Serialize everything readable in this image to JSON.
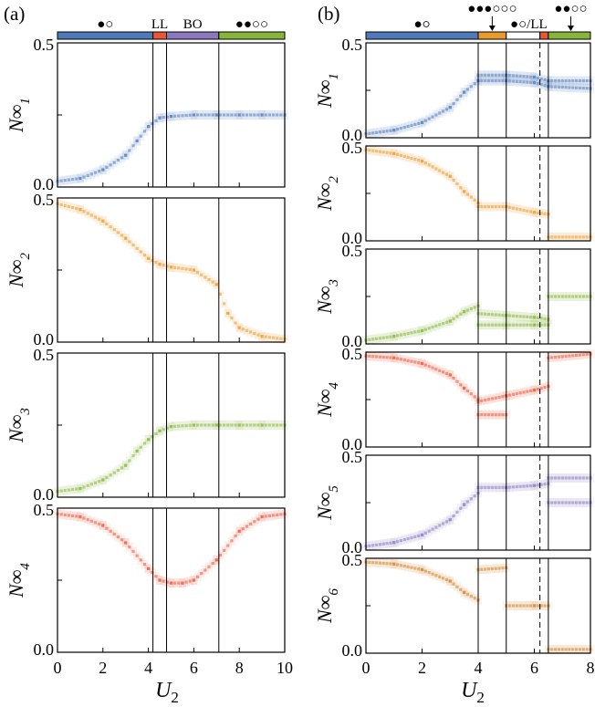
{
  "colors": {
    "blue": "#4f79b8",
    "orange": "#e89a2c",
    "green": "#86b53a",
    "red": "#e8553a",
    "purple": "#8a78c0",
    "brown": "#d2822c"
  },
  "chart_data": [
    {
      "type": "scatter",
      "panel_label": "(a)",
      "xlabel": "U2",
      "xlim": [
        0,
        10
      ],
      "xticks": [
        "0",
        "2",
        "4",
        "6",
        "8",
        "10"
      ],
      "phase_bar": [
        {
          "from": 0,
          "to": 4.2,
          "color": "#4f79b8",
          "label": "●○"
        },
        {
          "from": 4.2,
          "to": 4.8,
          "color": "#e8553a",
          "label": "LL"
        },
        {
          "from": 4.8,
          "to": 7.1,
          "color": "#8a78c0",
          "label": "BO"
        },
        {
          "from": 7.1,
          "to": 10,
          "color": "#86b53a",
          "label": "●●○○"
        }
      ],
      "vlines": [
        4.2,
        4.8,
        7.1
      ],
      "dashed_vlines": [],
      "subplots": [
        {
          "ylabel": "N∞",
          "subscript": "1",
          "ylim": [
            0,
            0.5
          ],
          "yticks": [
            "0.0",
            "0.5"
          ],
          "color": "#4f79b8",
          "series": [
            {
              "x": [
                0,
                1,
                2,
                3,
                3.5,
                4,
                4.5,
                5,
                6,
                7,
                8,
                9,
                10
              ],
              "y": [
                0.02,
                0.03,
                0.06,
                0.11,
                0.16,
                0.21,
                0.24,
                0.245,
                0.25,
                0.25,
                0.25,
                0.25,
                0.25
              ]
            }
          ]
        },
        {
          "ylabel": "N∞",
          "subscript": "2",
          "ylim": [
            0,
            0.5
          ],
          "yticks": [
            "0.0",
            "0.5"
          ],
          "color": "#e89a2c",
          "series": [
            {
              "x": [
                0,
                1,
                2,
                3,
                4,
                4.5,
                5,
                6,
                7,
                7.5,
                8,
                9,
                10
              ],
              "y": [
                0.48,
                0.46,
                0.42,
                0.36,
                0.29,
                0.27,
                0.26,
                0.25,
                0.2,
                0.1,
                0.05,
                0.02,
                0.01
              ]
            }
          ]
        },
        {
          "ylabel": "N∞",
          "subscript": "3",
          "ylim": [
            0,
            0.5
          ],
          "yticks": [
            "0.0",
            "0.5"
          ],
          "color": "#86b53a",
          "series": [
            {
              "x": [
                0,
                1,
                2,
                3,
                3.5,
                4,
                4.5,
                5,
                6,
                7,
                8,
                9,
                10
              ],
              "y": [
                0.02,
                0.03,
                0.06,
                0.11,
                0.16,
                0.2,
                0.23,
                0.245,
                0.25,
                0.25,
                0.25,
                0.25,
                0.25
              ]
            }
          ]
        },
        {
          "ylabel": "N∞",
          "subscript": "4",
          "ylim": [
            0,
            0.5
          ],
          "yticks": [
            "0.0",
            "0.5"
          ],
          "color": "#e8553a",
          "series": [
            {
              "x": [
                0,
                1,
                2,
                3,
                4,
                4.5,
                5,
                5.5,
                6,
                7,
                8,
                9,
                10
              ],
              "y": [
                0.48,
                0.47,
                0.44,
                0.38,
                0.29,
                0.25,
                0.24,
                0.24,
                0.25,
                0.32,
                0.42,
                0.47,
                0.48
              ]
            }
          ]
        }
      ]
    },
    {
      "type": "scatter",
      "panel_label": "(b)",
      "xlabel": "U2",
      "xlim": [
        0,
        8
      ],
      "xticks": [
        "0",
        "2",
        "4",
        "6",
        "8"
      ],
      "phase_bar": [
        {
          "from": 0,
          "to": 4.0,
          "color": "#4f79b8",
          "label": "●○"
        },
        {
          "from": 4.0,
          "to": 5.0,
          "color": "#e89a2c",
          "label": ""
        },
        {
          "from": 5.0,
          "to": 6.2,
          "color": "#ffffff",
          "label": ""
        },
        {
          "from": 6.2,
          "to": 6.5,
          "color": "#e8553a",
          "label": ""
        },
        {
          "from": 6.5,
          "to": 8,
          "color": "#86b53a",
          "label": ""
        }
      ],
      "phase_annotations": [
        {
          "label": "●○",
          "x": 2.0,
          "arrow": false
        },
        {
          "label": "●●●○○○",
          "x": 4.5,
          "arrow": true
        },
        {
          "label": "●○/LL",
          "x": 5.8,
          "arrow": false
        },
        {
          "label": "●●○○",
          "x": 7.3,
          "arrow": true
        }
      ],
      "vlines": [
        4.0,
        5.0,
        6.5
      ],
      "dashed_vlines": [
        6.2
      ],
      "subplots": [
        {
          "ylabel": "N∞",
          "subscript": "1",
          "ylim": [
            0,
            0.5
          ],
          "yticks": [
            "0.0",
            "0.5"
          ],
          "color": "#4f79b8",
          "series": [
            {
              "x": [
                0,
                1,
                2,
                3,
                3.5,
                4
              ],
              "y": [
                0.02,
                0.04,
                0.08,
                0.16,
                0.24,
                0.3
              ]
            },
            {
              "x": [
                4,
                5,
                6,
                6.5,
                8
              ],
              "y": [
                0.33,
                0.33,
                0.32,
                0.3,
                0.3
              ]
            },
            {
              "x": [
                4,
                5,
                6,
                6.5,
                8
              ],
              "y": [
                0.3,
                0.3,
                0.29,
                0.27,
                0.26
              ]
            }
          ]
        },
        {
          "ylabel": "N∞",
          "subscript": "2",
          "ylim": [
            0,
            0.5
          ],
          "yticks": [
            "0.0",
            "0.5"
          ],
          "color": "#e89a2c",
          "series": [
            {
              "x": [
                0,
                1,
                2,
                3,
                3.5,
                4
              ],
              "y": [
                0.48,
                0.46,
                0.42,
                0.34,
                0.26,
                0.2
              ]
            },
            {
              "x": [
                4,
                5,
                6,
                6.5
              ],
              "y": [
                0.18,
                0.18,
                0.15,
                0.14
              ]
            },
            {
              "x": [
                6.5,
                8
              ],
              "y": [
                0.02,
                0.02
              ]
            }
          ]
        },
        {
          "ylabel": "N∞",
          "subscript": "3",
          "ylim": [
            0,
            0.5
          ],
          "yticks": [
            "0.0",
            "0.5"
          ],
          "color": "#86b53a",
          "series": [
            {
              "x": [
                0,
                1,
                2,
                3,
                3.5,
                4
              ],
              "y": [
                0.02,
                0.04,
                0.07,
                0.12,
                0.17,
                0.2
              ]
            },
            {
              "x": [
                4,
                5,
                6,
                6.5
              ],
              "y": [
                0.16,
                0.15,
                0.14,
                0.13
              ]
            },
            {
              "x": [
                4,
                5,
                6,
                6.5
              ],
              "y": [
                0.1,
                0.1,
                0.1,
                0.1
              ]
            },
            {
              "x": [
                6.5,
                8
              ],
              "y": [
                0.25,
                0.25
              ]
            }
          ]
        },
        {
          "ylabel": "N∞",
          "subscript": "4",
          "ylim": [
            0,
            0.5
          ],
          "yticks": [
            "0.0",
            "0.5"
          ],
          "color": "#e8553a",
          "series": [
            {
              "x": [
                0,
                1,
                2,
                3,
                3.5,
                4
              ],
              "y": [
                0.48,
                0.47,
                0.44,
                0.38,
                0.31,
                0.25
              ]
            },
            {
              "x": [
                4,
                5
              ],
              "y": [
                0.17,
                0.17
              ]
            },
            {
              "x": [
                4,
                5,
                6,
                6.5
              ],
              "y": [
                0.24,
                0.27,
                0.3,
                0.32
              ]
            },
            {
              "x": [
                6.5,
                8
              ],
              "y": [
                0.47,
                0.49
              ]
            }
          ]
        },
        {
          "ylabel": "N∞",
          "subscript": "5",
          "ylim": [
            0,
            0.5
          ],
          "yticks": [
            "0.0",
            "0.5"
          ],
          "color": "#8a78c0",
          "series": [
            {
              "x": [
                0,
                1,
                2,
                3,
                3.5,
                4
              ],
              "y": [
                0.02,
                0.04,
                0.08,
                0.16,
                0.24,
                0.3
              ]
            },
            {
              "x": [
                4,
                5,
                6,
                6.5
              ],
              "y": [
                0.33,
                0.33,
                0.34,
                0.35
              ]
            },
            {
              "x": [
                6.5,
                8
              ],
              "y": [
                0.38,
                0.38
              ]
            },
            {
              "x": [
                6.5,
                8
              ],
              "y": [
                0.25,
                0.25
              ]
            }
          ]
        },
        {
          "ylabel": "N∞",
          "subscript": "6",
          "ylim": [
            0,
            0.5
          ],
          "yticks": [
            "0.0",
            "0.5"
          ],
          "color": "#d2822c",
          "series": [
            {
              "x": [
                0,
                1,
                2,
                3,
                3.5,
                4
              ],
              "y": [
                0.48,
                0.47,
                0.44,
                0.38,
                0.32,
                0.28
              ]
            },
            {
              "x": [
                4,
                5
              ],
              "y": [
                0.44,
                0.45
              ]
            },
            {
              "x": [
                5,
                6,
                6.5
              ],
              "y": [
                0.25,
                0.25,
                0.25
              ]
            },
            {
              "x": [
                6.5,
                8
              ],
              "y": [
                0.02,
                0.02
              ]
            }
          ]
        }
      ]
    }
  ]
}
